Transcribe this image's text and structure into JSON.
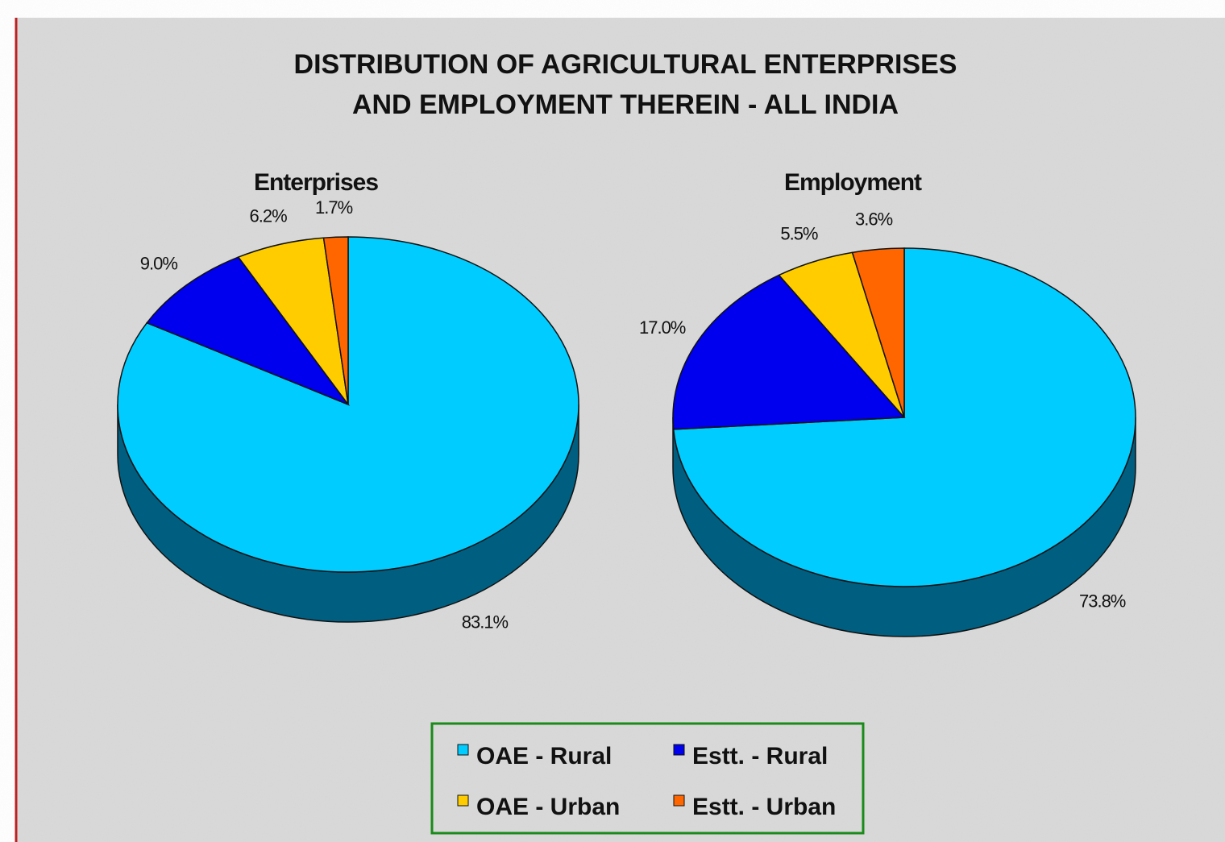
{
  "title": [
    "DISTRIBUTION OF AGRICULTURAL ENTERPRISES",
    "AND EMPLOYMENT THEREIN - ALL INDIA"
  ],
  "legend": {
    "labels": [
      "OAE - Rural",
      "Estt. - Rural",
      "OAE - Urban",
      "Estt. - Urban"
    ],
    "colors": [
      "#00ccff",
      "#0000ee",
      "#ffcc00",
      "#ff6600"
    ]
  },
  "chart_data": [
    {
      "type": "pie",
      "title": "Enterprises",
      "values": [
        83.1,
        9.0,
        6.2,
        1.7
      ],
      "value_labels": [
        "83.1%",
        "9.0%",
        "6.2%",
        "1.7%"
      ]
    },
    {
      "type": "pie",
      "title": "Employment",
      "values": [
        73.8,
        17.0,
        5.5,
        3.6
      ],
      "value_labels": [
        "73.8%",
        "17.0%",
        "5.5%",
        "3.6%"
      ]
    }
  ]
}
